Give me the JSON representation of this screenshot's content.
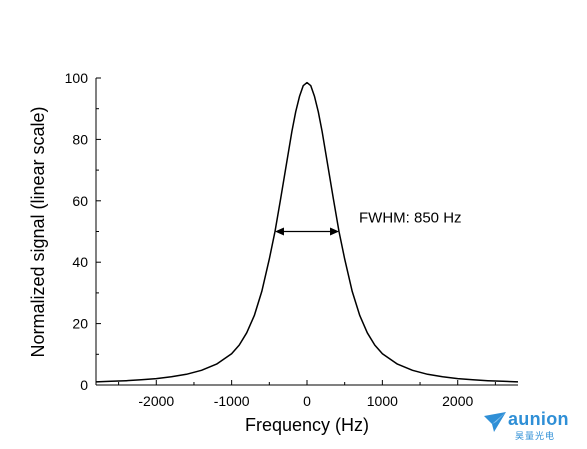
{
  "chart_data": {
    "type": "line",
    "xlabel": "Frequency  (Hz)",
    "ylabel": "Normalized signal  (linear scale)",
    "xlim": [
      -2800,
      2800
    ],
    "ylim": [
      0,
      100
    ],
    "x_ticks": [
      -2000,
      -1000,
      0,
      1000,
      2000
    ],
    "y_ticks": [
      0,
      20,
      40,
      60,
      80,
      100
    ],
    "x_tick_labels": [
      "-2000",
      "-1000",
      "0",
      "1000",
      "2000"
    ],
    "y_tick_labels": [
      "0",
      "20",
      "40",
      "60",
      "80",
      "100"
    ],
    "series": [
      {
        "x": [
          -2800,
          -2600,
          -2400,
          -2200,
          -2000,
          -1800,
          -1600,
          -1400,
          -1200,
          -1000,
          -900,
          -800,
          -700,
          -600,
          -500,
          -425,
          -350,
          -300,
          -250,
          -200,
          -150,
          -100,
          -50,
          0,
          50,
          100,
          150,
          200,
          250,
          300,
          350,
          425,
          500,
          600,
          700,
          800,
          900,
          1000,
          1200,
          1400,
          1600,
          1800,
          2000,
          2200,
          2400,
          2600,
          2800
        ],
        "y": [
          1.0,
          1.2,
          1.4,
          1.7,
          2.1,
          2.7,
          3.5,
          4.8,
          6.8,
          10.2,
          13.0,
          17.0,
          22.6,
          30.5,
          41.0,
          50.0,
          60.6,
          68.0,
          75.4,
          82.6,
          89.0,
          94.0,
          97.5,
          98.5,
          97.5,
          94.0,
          89.0,
          82.6,
          75.4,
          68.0,
          60.6,
          50.0,
          41.0,
          30.5,
          22.6,
          17.0,
          13.0,
          10.2,
          6.8,
          4.8,
          3.5,
          2.7,
          2.1,
          1.7,
          1.4,
          1.2,
          1.0
        ]
      }
    ],
    "annotations": [
      {
        "text": "FWHM: 850 Hz",
        "x_start": -425,
        "x_end": 425,
        "y": 50
      }
    ],
    "grid": false,
    "legend": "none"
  },
  "logo": {
    "name": "aunion",
    "subtitle": "昊量光电",
    "color": "#2f8fd6"
  }
}
